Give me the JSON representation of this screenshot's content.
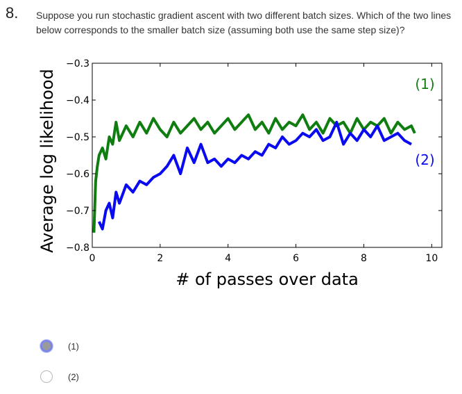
{
  "question": {
    "number": "8.",
    "text": "Suppose you run stochastic gradient ascent with two different batch sizes. Which of the two lines below corresponds to the smaller batch size (assuming both use the same step size)?"
  },
  "options": [
    {
      "label": "(1)",
      "selected": true
    },
    {
      "label": "(2)",
      "selected": false
    }
  ],
  "colors": {
    "series1": "#107d10",
    "series2": "#0a0af0",
    "axis": "#000000"
  },
  "chart_data": {
    "type": "line",
    "xlabel": "# of passes over data",
    "ylabel": "Average log likelihood",
    "xlim": [
      0,
      10.3
    ],
    "ylim": [
      -0.8,
      -0.3
    ],
    "xticks": [
      0,
      2,
      4,
      6,
      8,
      10
    ],
    "xtick_labels": [
      "0",
      "2",
      "4",
      "6",
      "8",
      "10"
    ],
    "yticks": [
      -0.8,
      -0.7,
      -0.6,
      -0.5,
      -0.4,
      -0.3
    ],
    "ytick_labels": [
      "−0.8",
      "−0.7",
      "−0.6",
      "−0.5",
      "−0.4",
      "−0.3"
    ],
    "grid": false,
    "series": [
      {
        "name": "(1)",
        "color": "#107d10",
        "x": [
          0.05,
          0.1,
          0.15,
          0.2,
          0.3,
          0.4,
          0.5,
          0.6,
          0.7,
          0.8,
          0.9,
          1.0,
          1.2,
          1.4,
          1.6,
          1.8,
          2.0,
          2.2,
          2.4,
          2.6,
          2.8,
          3.0,
          3.2,
          3.4,
          3.6,
          3.8,
          4.0,
          4.2,
          4.4,
          4.6,
          4.8,
          5.0,
          5.2,
          5.4,
          5.6,
          5.8,
          6.0,
          6.2,
          6.4,
          6.6,
          6.8,
          7.0,
          7.2,
          7.4,
          7.6,
          7.8,
          8.0,
          8.2,
          8.4,
          8.6,
          8.8,
          9.0,
          9.2,
          9.4,
          9.5
        ],
        "y": [
          -0.76,
          -0.62,
          -0.58,
          -0.55,
          -0.53,
          -0.56,
          -0.5,
          -0.52,
          -0.46,
          -0.51,
          -0.49,
          -0.47,
          -0.5,
          -0.46,
          -0.49,
          -0.45,
          -0.48,
          -0.5,
          -0.46,
          -0.49,
          -0.47,
          -0.45,
          -0.48,
          -0.46,
          -0.49,
          -0.47,
          -0.45,
          -0.48,
          -0.46,
          -0.44,
          -0.48,
          -0.46,
          -0.49,
          -0.45,
          -0.48,
          -0.46,
          -0.47,
          -0.44,
          -0.48,
          -0.46,
          -0.49,
          -0.45,
          -0.47,
          -0.46,
          -0.49,
          -0.45,
          -0.48,
          -0.46,
          -0.47,
          -0.45,
          -0.49,
          -0.46,
          -0.48,
          -0.47,
          -0.49
        ]
      },
      {
        "name": "(2)",
        "color": "#0a0af0",
        "x": [
          0.2,
          0.3,
          0.4,
          0.5,
          0.6,
          0.7,
          0.8,
          1.0,
          1.2,
          1.4,
          1.6,
          1.8,
          2.0,
          2.2,
          2.4,
          2.6,
          2.8,
          3.0,
          3.2,
          3.4,
          3.6,
          3.8,
          4.0,
          4.2,
          4.4,
          4.6,
          4.8,
          5.0,
          5.2,
          5.4,
          5.6,
          5.8,
          6.0,
          6.2,
          6.4,
          6.6,
          6.8,
          7.0,
          7.2,
          7.4,
          7.6,
          7.8,
          8.0,
          8.2,
          8.4,
          8.6,
          8.8,
          9.0,
          9.2,
          9.4
        ],
        "y": [
          -0.73,
          -0.75,
          -0.7,
          -0.68,
          -0.72,
          -0.65,
          -0.68,
          -0.63,
          -0.65,
          -0.62,
          -0.63,
          -0.61,
          -0.6,
          -0.58,
          -0.55,
          -0.6,
          -0.53,
          -0.57,
          -0.52,
          -0.57,
          -0.56,
          -0.58,
          -0.56,
          -0.57,
          -0.55,
          -0.56,
          -0.54,
          -0.55,
          -0.52,
          -0.53,
          -0.5,
          -0.52,
          -0.51,
          -0.49,
          -0.5,
          -0.48,
          -0.51,
          -0.5,
          -0.46,
          -0.52,
          -0.49,
          -0.51,
          -0.48,
          -0.5,
          -0.47,
          -0.51,
          -0.5,
          -0.49,
          -0.51,
          -0.52
        ]
      }
    ],
    "annotations": [
      {
        "text": "(1)",
        "x": 9.8,
        "y": -0.37,
        "series": "(1)"
      },
      {
        "text": "(2)",
        "x": 9.8,
        "y": -0.575,
        "series": "(2)"
      }
    ]
  }
}
